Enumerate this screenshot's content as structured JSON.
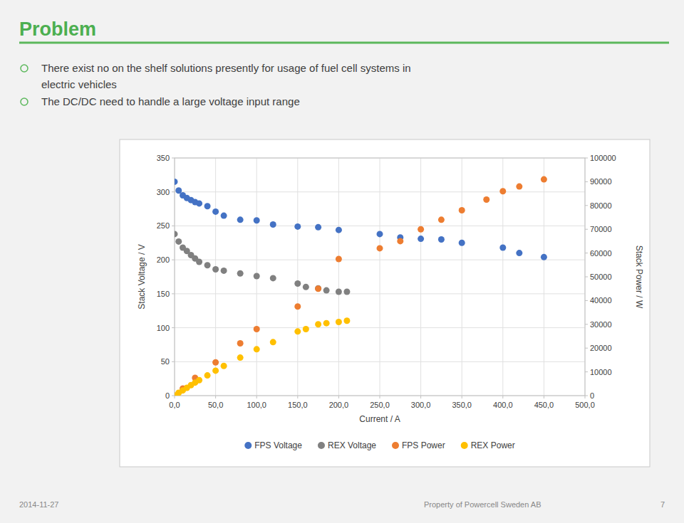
{
  "chart_data": {
    "type": "scatter",
    "title": "Problem",
    "annotations": [
      "There exist no on the shelf solutions presently for usage of fuel cell systems in",
      "electric vehicles",
      "The DC/DC need to handle a large voltage input range",
      "2014-11-27",
      "Property of Powercell Sweden AB",
      "7"
    ],
    "xlabel": "Current / A",
    "ylabel": "Stack Voltage / V",
    "y2label": "Stack Power / W",
    "xlim": [
      0,
      500
    ],
    "ylim": [
      0,
      350
    ],
    "y2lim": [
      0,
      100000
    ],
    "xticks": [
      {
        "value": 0,
        "label": "0,0"
      },
      {
        "value": 50,
        "label": "50,0"
      },
      {
        "value": 100,
        "label": "100,0"
      },
      {
        "value": 150,
        "label": "150,0"
      },
      {
        "value": 200,
        "label": "200,0"
      },
      {
        "value": 250,
        "label": "250,0"
      },
      {
        "value": 300,
        "label": "300,0"
      },
      {
        "value": 350,
        "label": "350,0"
      },
      {
        "value": 400,
        "label": "400,0"
      },
      {
        "value": 450,
        "label": "450,0"
      },
      {
        "value": 500,
        "label": "500,0"
      }
    ],
    "yticks": [
      0,
      50,
      100,
      150,
      200,
      250,
      300,
      350
    ],
    "y2ticks": [
      0,
      10000,
      20000,
      30000,
      40000,
      50000,
      60000,
      70000,
      80000,
      90000,
      100000
    ],
    "grid": true,
    "legend": "bottom",
    "series": [
      {
        "name": "FPS Voltage",
        "color": "#4472C4",
        "marker": "circle",
        "x": [
          0,
          5,
          10,
          15,
          20,
          25,
          30,
          40,
          50,
          60,
          80,
          100,
          120,
          150,
          175,
          200,
          250,
          275,
          300,
          325,
          350,
          400,
          420,
          450
        ],
        "values": [
          315,
          302,
          295,
          291,
          288,
          285,
          283,
          279,
          271,
          265,
          259,
          258,
          252,
          249,
          248,
          244,
          238,
          233,
          231,
          230,
          225,
          218,
          210,
          204
        ]
      },
      {
        "name": "REX Voltage",
        "color": "#808080",
        "marker": "circle",
        "x": [
          0,
          5,
          10,
          15,
          20,
          25,
          30,
          40,
          50,
          60,
          80,
          100,
          120,
          150,
          160,
          175,
          185,
          200,
          210
        ],
        "values": [
          238,
          227,
          218,
          213,
          207,
          202,
          197,
          192,
          186,
          184,
          180,
          176,
          173,
          165,
          160,
          158,
          155,
          153,
          153
        ]
      },
      {
        "name": "FPS Power",
        "color": "#ED7D31",
        "marker": "circle",
        "axis": "y2",
        "x": [
          0,
          10,
          25,
          50,
          80,
          100,
          150,
          175,
          200,
          250,
          275,
          300,
          325,
          350,
          380,
          400,
          420,
          450
        ],
        "values": [
          0,
          3000,
          7500,
          14000,
          22000,
          28000,
          37500,
          45000,
          57500,
          62000,
          65000,
          70000,
          74000,
          78000,
          82500,
          86000,
          88000,
          91000
        ]
      },
      {
        "name": "REX Power",
        "color": "#FFC000",
        "marker": "circle",
        "axis": "y2",
        "x": [
          0,
          5,
          10,
          15,
          20,
          25,
          30,
          40,
          50,
          60,
          80,
          100,
          120,
          150,
          160,
          175,
          185,
          200,
          210
        ],
        "values": [
          0,
          1200,
          2200,
          3300,
          4400,
          5500,
          6500,
          8500,
          10500,
          12500,
          16000,
          19500,
          22500,
          27000,
          28000,
          30000,
          30500,
          31000,
          31500
        ]
      }
    ]
  }
}
